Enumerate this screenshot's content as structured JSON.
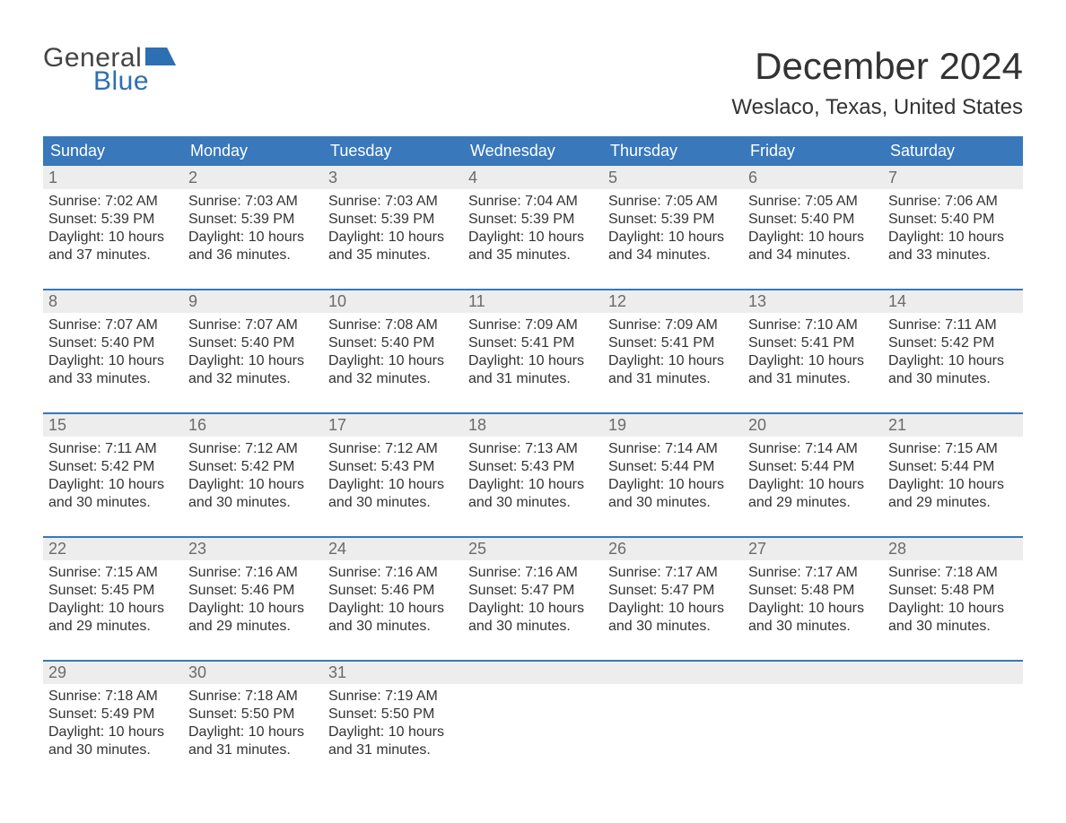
{
  "logo": {
    "text_general": "General",
    "text_blue": "Blue",
    "flag_color": "#2d6fb3"
  },
  "title": "December 2024",
  "location": "Weslaco, Texas, United States",
  "colors": {
    "header_bg": "#3878bb",
    "header_text": "#ffffff",
    "daynum_bg": "#ededed",
    "daynum_text": "#6b6b6b",
    "body_text": "#333333",
    "separator": "#3878bb",
    "page_bg": "#ffffff"
  },
  "weekdays": [
    "Sunday",
    "Monday",
    "Tuesday",
    "Wednesday",
    "Thursday",
    "Friday",
    "Saturday"
  ],
  "weeks": [
    {
      "days": [
        {
          "n": "1",
          "sunrise": "7:02 AM",
          "sunset": "5:39 PM",
          "daylight": "10 hours and 37 minutes."
        },
        {
          "n": "2",
          "sunrise": "7:03 AM",
          "sunset": "5:39 PM",
          "daylight": "10 hours and 36 minutes."
        },
        {
          "n": "3",
          "sunrise": "7:03 AM",
          "sunset": "5:39 PM",
          "daylight": "10 hours and 35 minutes."
        },
        {
          "n": "4",
          "sunrise": "7:04 AM",
          "sunset": "5:39 PM",
          "daylight": "10 hours and 35 minutes."
        },
        {
          "n": "5",
          "sunrise": "7:05 AM",
          "sunset": "5:39 PM",
          "daylight": "10 hours and 34 minutes."
        },
        {
          "n": "6",
          "sunrise": "7:05 AM",
          "sunset": "5:40 PM",
          "daylight": "10 hours and 34 minutes."
        },
        {
          "n": "7",
          "sunrise": "7:06 AM",
          "sunset": "5:40 PM",
          "daylight": "10 hours and 33 minutes."
        }
      ]
    },
    {
      "days": [
        {
          "n": "8",
          "sunrise": "7:07 AM",
          "sunset": "5:40 PM",
          "daylight": "10 hours and 33 minutes."
        },
        {
          "n": "9",
          "sunrise": "7:07 AM",
          "sunset": "5:40 PM",
          "daylight": "10 hours and 32 minutes."
        },
        {
          "n": "10",
          "sunrise": "7:08 AM",
          "sunset": "5:40 PM",
          "daylight": "10 hours and 32 minutes."
        },
        {
          "n": "11",
          "sunrise": "7:09 AM",
          "sunset": "5:41 PM",
          "daylight": "10 hours and 31 minutes."
        },
        {
          "n": "12",
          "sunrise": "7:09 AM",
          "sunset": "5:41 PM",
          "daylight": "10 hours and 31 minutes."
        },
        {
          "n": "13",
          "sunrise": "7:10 AM",
          "sunset": "5:41 PM",
          "daylight": "10 hours and 31 minutes."
        },
        {
          "n": "14",
          "sunrise": "7:11 AM",
          "sunset": "5:42 PM",
          "daylight": "10 hours and 30 minutes."
        }
      ]
    },
    {
      "days": [
        {
          "n": "15",
          "sunrise": "7:11 AM",
          "sunset": "5:42 PM",
          "daylight": "10 hours and 30 minutes."
        },
        {
          "n": "16",
          "sunrise": "7:12 AM",
          "sunset": "5:42 PM",
          "daylight": "10 hours and 30 minutes."
        },
        {
          "n": "17",
          "sunrise": "7:12 AM",
          "sunset": "5:43 PM",
          "daylight": "10 hours and 30 minutes."
        },
        {
          "n": "18",
          "sunrise": "7:13 AM",
          "sunset": "5:43 PM",
          "daylight": "10 hours and 30 minutes."
        },
        {
          "n": "19",
          "sunrise": "7:14 AM",
          "sunset": "5:44 PM",
          "daylight": "10 hours and 30 minutes."
        },
        {
          "n": "20",
          "sunrise": "7:14 AM",
          "sunset": "5:44 PM",
          "daylight": "10 hours and 29 minutes."
        },
        {
          "n": "21",
          "sunrise": "7:15 AM",
          "sunset": "5:44 PM",
          "daylight": "10 hours and 29 minutes."
        }
      ]
    },
    {
      "days": [
        {
          "n": "22",
          "sunrise": "7:15 AM",
          "sunset": "5:45 PM",
          "daylight": "10 hours and 29 minutes."
        },
        {
          "n": "23",
          "sunrise": "7:16 AM",
          "sunset": "5:46 PM",
          "daylight": "10 hours and 29 minutes."
        },
        {
          "n": "24",
          "sunrise": "7:16 AM",
          "sunset": "5:46 PM",
          "daylight": "10 hours and 30 minutes."
        },
        {
          "n": "25",
          "sunrise": "7:16 AM",
          "sunset": "5:47 PM",
          "daylight": "10 hours and 30 minutes."
        },
        {
          "n": "26",
          "sunrise": "7:17 AM",
          "sunset": "5:47 PM",
          "daylight": "10 hours and 30 minutes."
        },
        {
          "n": "27",
          "sunrise": "7:17 AM",
          "sunset": "5:48 PM",
          "daylight": "10 hours and 30 minutes."
        },
        {
          "n": "28",
          "sunrise": "7:18 AM",
          "sunset": "5:48 PM",
          "daylight": "10 hours and 30 minutes."
        }
      ]
    },
    {
      "days": [
        {
          "n": "29",
          "sunrise": "7:18 AM",
          "sunset": "5:49 PM",
          "daylight": "10 hours and 30 minutes."
        },
        {
          "n": "30",
          "sunrise": "7:18 AM",
          "sunset": "5:50 PM",
          "daylight": "10 hours and 31 minutes."
        },
        {
          "n": "31",
          "sunrise": "7:19 AM",
          "sunset": "5:50 PM",
          "daylight": "10 hours and 31 minutes."
        },
        null,
        null,
        null,
        null
      ]
    }
  ],
  "labels": {
    "sunrise": "Sunrise: ",
    "sunset": "Sunset: ",
    "daylight": "Daylight: "
  }
}
